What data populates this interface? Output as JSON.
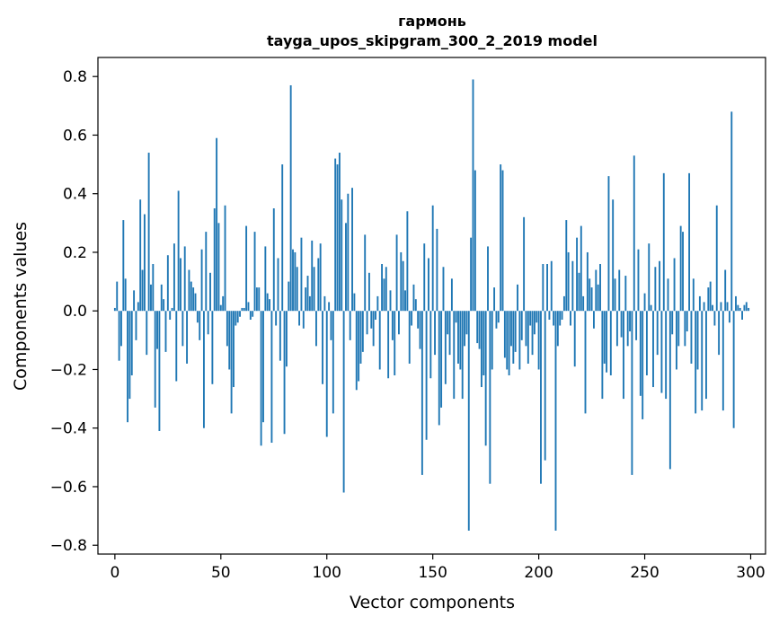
{
  "chart_data": {
    "type": "bar",
    "title": "гармонь",
    "subtitle": "tayga_upos_skipgram_300_2_2019 model",
    "xlabel": "Vector components",
    "ylabel": "Components values",
    "xlim": [
      -8,
      307
    ],
    "ylim": [
      -0.83,
      0.865
    ],
    "xticks": [
      0,
      50,
      100,
      150,
      200,
      250,
      300
    ],
    "xtick_labels": [
      "0",
      "50",
      "100",
      "150",
      "200",
      "250",
      "300"
    ],
    "yticks": [
      -0.8,
      -0.6,
      -0.4,
      -0.2,
      0.0,
      0.2,
      0.4,
      0.6,
      0.8
    ],
    "ytick_labels": [
      "−0.8",
      "−0.6",
      "−0.4",
      "−0.2",
      "0.0",
      "0.2",
      "0.4",
      "0.6",
      "0.8"
    ],
    "grid": false,
    "bar_color": "#1f77b4",
    "values": [
      0.01,
      0.1,
      -0.17,
      -0.12,
      0.31,
      0.11,
      -0.38,
      -0.3,
      -0.22,
      0.07,
      -0.1,
      0.03,
      0.38,
      0.14,
      0.33,
      -0.15,
      0.54,
      0.09,
      0.16,
      -0.33,
      -0.13,
      -0.41,
      0.09,
      0.04,
      -0.14,
      0.19,
      -0.03,
      0.01,
      0.23,
      -0.24,
      0.41,
      0.18,
      -0.12,
      0.22,
      -0.18,
      0.14,
      0.1,
      0.08,
      0.06,
      -0.04,
      -0.1,
      0.21,
      -0.4,
      0.27,
      -0.08,
      0.13,
      -0.25,
      0.35,
      0.59,
      0.3,
      0.02,
      0.05,
      0.36,
      -0.12,
      -0.2,
      -0.35,
      -0.26,
      -0.05,
      -0.04,
      -0.02,
      0.01,
      0.01,
      0.29,
      0.03,
      -0.03,
      -0.02,
      0.27,
      0.08,
      0.08,
      -0.46,
      -0.38,
      0.22,
      0.06,
      0.04,
      -0.45,
      0.35,
      -0.05,
      0.18,
      -0.17,
      0.5,
      -0.42,
      -0.19,
      0.1,
      0.77,
      0.21,
      0.2,
      0.15,
      -0.05,
      0.25,
      -0.06,
      0.08,
      0.12,
      0.05,
      0.24,
      0.15,
      -0.12,
      0.18,
      0.23,
      -0.25,
      0.05,
      -0.43,
      0.03,
      -0.1,
      -0.35,
      0.52,
      0.5,
      0.54,
      0.38,
      -0.62,
      0.3,
      0.4,
      -0.1,
      0.42,
      0.06,
      -0.27,
      -0.24,
      -0.18,
      -0.14,
      0.26,
      -0.08,
      0.13,
      -0.06,
      -0.12,
      -0.03,
      0.05,
      -0.2,
      0.16,
      0.11,
      0.15,
      -0.23,
      0.07,
      -0.1,
      -0.22,
      0.26,
      -0.08,
      0.2,
      0.17,
      0.07,
      0.34,
      -0.18,
      -0.05,
      0.09,
      0.04,
      -0.06,
      -0.13,
      -0.56,
      0.23,
      -0.44,
      0.18,
      -0.23,
      0.36,
      -0.15,
      0.28,
      -0.39,
      -0.33,
      0.15,
      -0.25,
      -0.08,
      -0.15,
      0.11,
      -0.3,
      -0.04,
      -0.18,
      -0.2,
      -0.3,
      -0.12,
      -0.08,
      -0.75,
      0.25,
      0.79,
      0.48,
      -0.11,
      -0.13,
      -0.26,
      -0.22,
      -0.46,
      0.22,
      -0.59,
      -0.2,
      0.08,
      -0.06,
      -0.04,
      0.5,
      0.48,
      -0.16,
      -0.2,
      -0.22,
      -0.12,
      -0.18,
      -0.14,
      0.09,
      -0.2,
      -0.1,
      0.32,
      -0.12,
      -0.18,
      -0.05,
      -0.15,
      -0.08,
      -0.04,
      -0.2,
      -0.59,
      0.16,
      -0.51,
      0.16,
      -0.03,
      0.17,
      -0.05,
      -0.75,
      -0.12,
      -0.05,
      -0.03,
      0.05,
      0.31,
      0.2,
      -0.05,
      0.17,
      -0.19,
      0.25,
      0.13,
      0.29,
      0.05,
      -0.35,
      0.2,
      0.11,
      0.08,
      -0.06,
      0.14,
      0.09,
      0.16,
      -0.3,
      -0.18,
      -0.21,
      0.46,
      -0.22,
      0.38,
      0.11,
      -0.12,
      0.14,
      -0.09,
      -0.3,
      0.12,
      -0.12,
      -0.07,
      -0.56,
      0.53,
      -0.1,
      0.21,
      -0.29,
      -0.37,
      0.06,
      -0.22,
      0.23,
      0.02,
      -0.26,
      0.15,
      -0.15,
      0.17,
      -0.28,
      0.47,
      -0.3,
      0.11,
      -0.54,
      -0.08,
      0.18,
      -0.2,
      -0.12,
      0.29,
      0.27,
      -0.12,
      -0.07,
      0.47,
      -0.18,
      0.11,
      -0.35,
      -0.2,
      0.05,
      -0.34,
      0.03,
      -0.3,
      0.08,
      0.1,
      0.02,
      -0.05,
      0.36,
      -0.15,
      0.03,
      -0.34,
      0.14,
      0.03,
      -0.04,
      0.68,
      -0.4,
      0.05,
      0.02,
      0.01,
      -0.03,
      0.02,
      0.03,
      0.01
    ]
  }
}
